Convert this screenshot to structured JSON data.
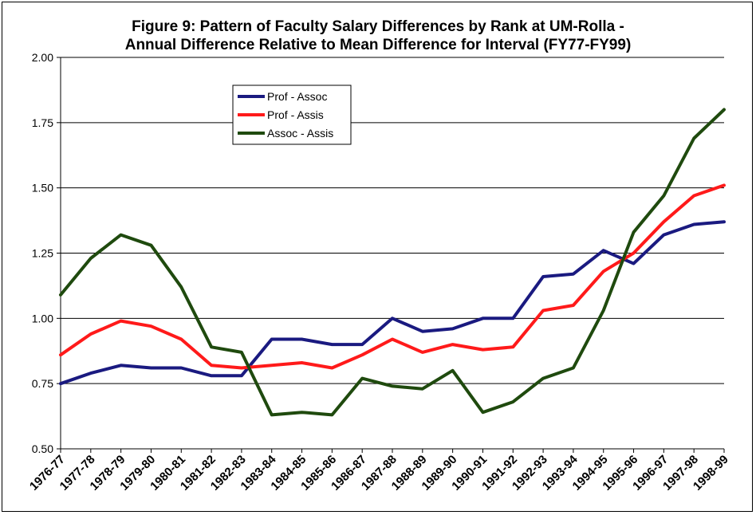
{
  "chart_data": {
    "type": "line",
    "title_line1": "Figure 9: Pattern of Faculty Salary Differences by Rank at UM-Rolla -",
    "title_line2": "Annual Difference Relative to Mean Difference for Interval (FY77-FY99)",
    "xlabel": "",
    "ylabel": "",
    "ylim": [
      0.5,
      2.0
    ],
    "yticks": [
      "0.50",
      "0.75",
      "1.00",
      "1.25",
      "1.50",
      "1.75",
      "2.00"
    ],
    "grid": true,
    "legend_position": "top-left",
    "categories": [
      "1976-77",
      "1977-78",
      "1978-79",
      "1979-80",
      "1980-81",
      "1981-82",
      "1982-83",
      "1983-84",
      "1984-85",
      "1985-86",
      "1986-87",
      "1987-88",
      "1988-89",
      "1989-90",
      "1990-91",
      "1991-92",
      "1992-93",
      "1993-94",
      "1994-95",
      "1995-96",
      "1996-97",
      "1997-98",
      "1998-99"
    ],
    "series": [
      {
        "name": "Prof - Assoc",
        "color": "#1a1a80",
        "values": [
          0.75,
          0.79,
          0.82,
          0.81,
          0.81,
          0.78,
          0.78,
          0.92,
          0.92,
          0.9,
          0.9,
          1.0,
          0.95,
          0.96,
          1.0,
          1.0,
          1.16,
          1.17,
          1.26,
          1.21,
          1.32,
          1.36,
          1.37
        ]
      },
      {
        "name": "Prof - Assis",
        "color": "#ff1a1a",
        "values": [
          0.86,
          0.94,
          0.99,
          0.97,
          0.92,
          0.82,
          0.81,
          0.82,
          0.83,
          0.81,
          0.86,
          0.92,
          0.87,
          0.9,
          0.88,
          0.89,
          1.03,
          1.05,
          1.18,
          1.25,
          1.37,
          1.47,
          1.51
        ]
      },
      {
        "name": "Assoc - Assis",
        "color": "#1f4a0e",
        "values": [
          1.09,
          1.23,
          1.32,
          1.28,
          1.12,
          0.89,
          0.87,
          0.63,
          0.64,
          0.63,
          0.77,
          0.74,
          0.73,
          0.8,
          0.64,
          0.68,
          0.77,
          0.81,
          1.03,
          1.33,
          1.47,
          1.69,
          1.8
        ]
      }
    ]
  }
}
